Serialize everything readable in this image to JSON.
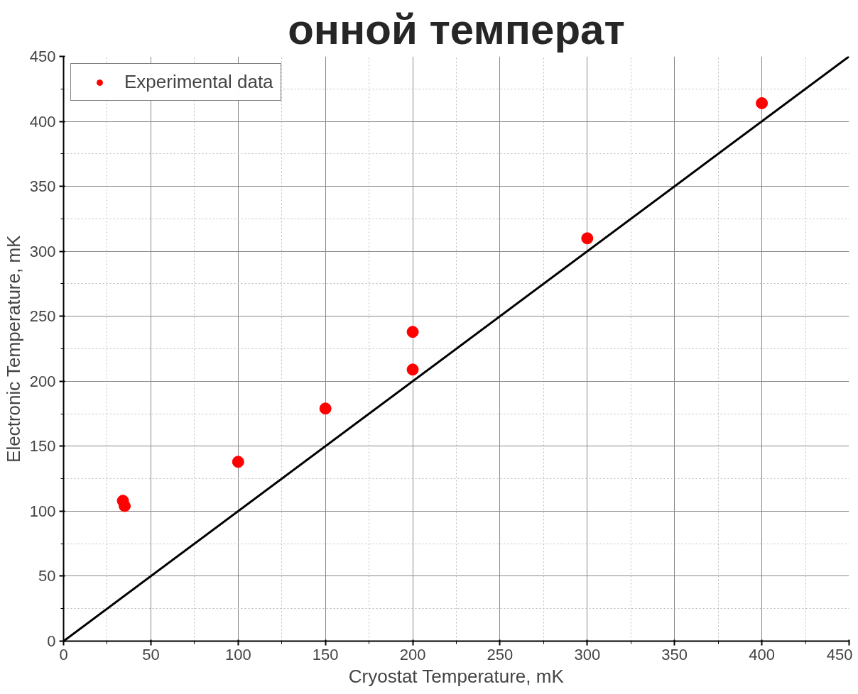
{
  "chart_data": {
    "type": "scatter",
    "title": "онной температ",
    "xlabel": "Cryostat Temperature, mK",
    "ylabel": "Electronic Temperature, mK",
    "xlim": [
      0,
      450
    ],
    "ylim": [
      0,
      450
    ],
    "xticks": [
      0,
      50,
      100,
      150,
      200,
      250,
      300,
      350,
      400,
      450
    ],
    "yticks": [
      0,
      50,
      100,
      150,
      200,
      250,
      300,
      350,
      400,
      450
    ],
    "grid": true,
    "legend": "top left",
    "marker": "circle",
    "series": [
      {
        "type": "line",
        "marker": "none",
        "color": "#000000",
        "x": [
          0,
          450
        ],
        "values": [
          0,
          450
        ]
      },
      {
        "name": "Experimental data",
        "color": "#ff0000",
        "x": [
          34,
          35,
          100,
          150,
          200,
          200,
          300,
          400
        ],
        "values": [
          108,
          104,
          138,
          179,
          209,
          238,
          310,
          414
        ]
      }
    ]
  }
}
